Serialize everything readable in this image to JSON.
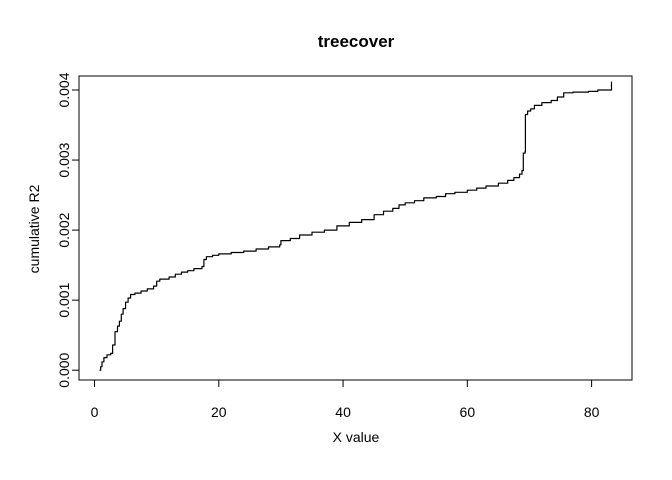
{
  "chart_data": {
    "type": "line",
    "title": "treecover",
    "xlabel": "X value",
    "ylabel": "cumulative R2",
    "xlim": [
      -2.5,
      86.5
    ],
    "ylim": [
      -0.00014,
      0.0042
    ],
    "xticks": [
      0,
      20,
      40,
      60,
      80
    ],
    "xtick_labels": [
      "0",
      "20",
      "40",
      "60",
      "80"
    ],
    "yticks": [
      0,
      0.001,
      0.002,
      0.003,
      0.004
    ],
    "ytick_labels": [
      "0.000",
      "0.001",
      "0.002",
      "0.003",
      "0.004"
    ],
    "grid": false,
    "legend": "none",
    "line_color": "#000000",
    "series": [
      {
        "step": true,
        "points": [
          [
            0.8,
            0.0
          ],
          [
            1.0,
            5e-05
          ],
          [
            1.2,
            0.00012
          ],
          [
            1.5,
            0.00018
          ],
          [
            2.0,
            0.00022
          ],
          [
            2.6,
            0.00024
          ],
          [
            2.9,
            0.00036
          ],
          [
            3.3,
            0.00055
          ],
          [
            3.7,
            0.00063
          ],
          [
            4.0,
            0.0007
          ],
          [
            4.3,
            0.0008
          ],
          [
            4.6,
            0.00088
          ],
          [
            5.0,
            0.00097
          ],
          [
            5.4,
            0.00103
          ],
          [
            5.8,
            0.00108
          ],
          [
            6.5,
            0.0011
          ],
          [
            7.5,
            0.00113
          ],
          [
            8.5,
            0.00116
          ],
          [
            9.5,
            0.0012
          ],
          [
            10.0,
            0.00127
          ],
          [
            10.5,
            0.0013
          ],
          [
            12.0,
            0.00133
          ],
          [
            13.0,
            0.00137
          ],
          [
            14.0,
            0.0014
          ],
          [
            15.0,
            0.00142
          ],
          [
            16.0,
            0.00145
          ],
          [
            17.3,
            0.00148
          ],
          [
            17.6,
            0.00158
          ],
          [
            18.0,
            0.00162
          ],
          [
            19.0,
            0.00164
          ],
          [
            20.0,
            0.00166
          ],
          [
            22.0,
            0.00168
          ],
          [
            24.0,
            0.0017
          ],
          [
            26.0,
            0.00173
          ],
          [
            28.0,
            0.00176
          ],
          [
            29.8,
            0.00179
          ],
          [
            30.0,
            0.00185
          ],
          [
            31.5,
            0.00188
          ],
          [
            33.0,
            0.00193
          ],
          [
            35.0,
            0.00197
          ],
          [
            37.0,
            0.002
          ],
          [
            39.0,
            0.00206
          ],
          [
            41.0,
            0.00211
          ],
          [
            43.0,
            0.00215
          ],
          [
            45.0,
            0.00222
          ],
          [
            46.5,
            0.00227
          ],
          [
            48.0,
            0.00231
          ],
          [
            49.0,
            0.00236
          ],
          [
            50.0,
            0.00239
          ],
          [
            51.5,
            0.00242
          ],
          [
            53.0,
            0.00246
          ],
          [
            55.0,
            0.00248
          ],
          [
            56.5,
            0.00252
          ],
          [
            58.0,
            0.00254
          ],
          [
            60.0,
            0.00257
          ],
          [
            61.5,
            0.0026
          ],
          [
            63.0,
            0.00263
          ],
          [
            65.0,
            0.00267
          ],
          [
            66.5,
            0.00271
          ],
          [
            67.5,
            0.00275
          ],
          [
            68.4,
            0.0028
          ],
          [
            68.8,
            0.00285
          ],
          [
            69.0,
            0.0031
          ],
          [
            69.3,
            0.00312
          ],
          [
            69.35,
            0.00365
          ],
          [
            69.7,
            0.0037
          ],
          [
            70.2,
            0.00373
          ],
          [
            70.8,
            0.00378
          ],
          [
            72.0,
            0.00382
          ],
          [
            73.5,
            0.00385
          ],
          [
            74.5,
            0.0039
          ],
          [
            75.5,
            0.00396
          ],
          [
            77.0,
            0.00397
          ],
          [
            79.5,
            0.00398
          ],
          [
            81.0,
            0.004
          ],
          [
            83.2,
            0.00412
          ]
        ]
      }
    ]
  }
}
